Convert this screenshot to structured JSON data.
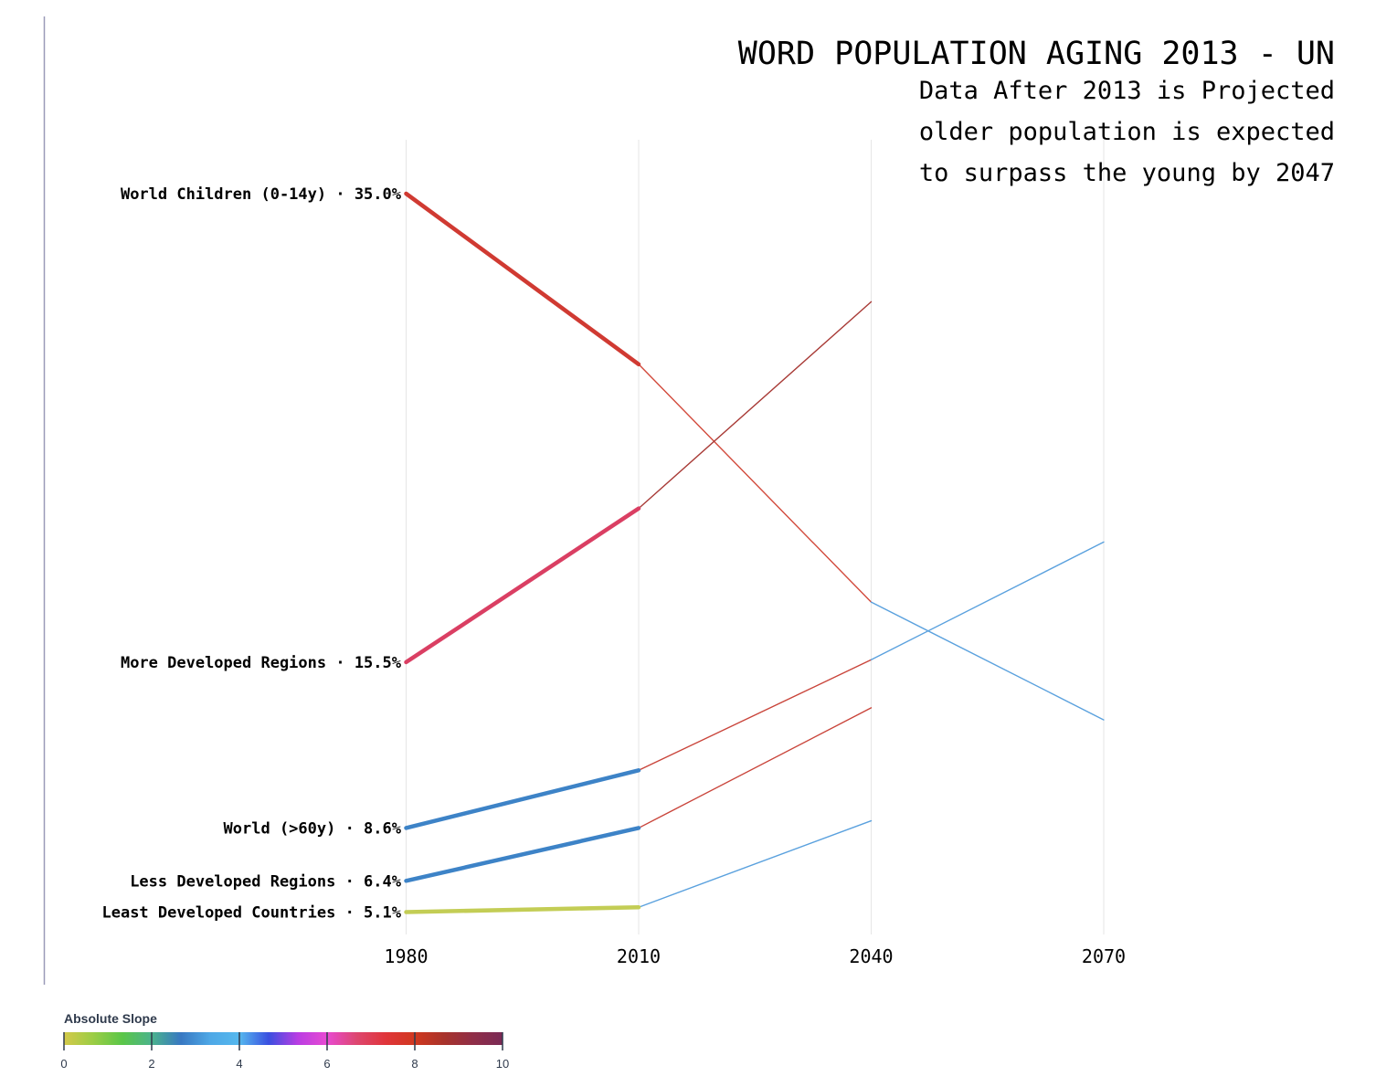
{
  "title": "WORD POPULATION AGING 2013 - UN",
  "subtitle_lines": [
    "Data After 2013 is Projected",
    "older population is expected",
    "to surpass the young by 2047"
  ],
  "chart_data": {
    "type": "line",
    "title": "WORD POPULATION AGING 2013 - UN",
    "x": [
      1980,
      2010,
      2040,
      2070
    ],
    "ylim": [
      3.5,
      37
    ],
    "grid": true,
    "series": [
      {
        "name": "World Children (0-14y)",
        "label": "World Children (0-14y) · 35.0%",
        "values": [
          35.0,
          27.9,
          18.0,
          13.1
        ],
        "segment_colors": [
          "#d03a32",
          "#d24a3c",
          "#5aa1de"
        ]
      },
      {
        "name": "More Developed Regions",
        "label": "More Developed Regions · 15.5%",
        "values": [
          15.5,
          21.9,
          30.5,
          null
        ],
        "segment_colors": [
          "#da3f63",
          "#a83a36",
          null
        ]
      },
      {
        "name": "World (>60y)",
        "label": "World (>60y) · 8.6%",
        "values": [
          8.6,
          11.0,
          15.6,
          20.5
        ],
        "segment_colors": [
          "#3d83c7",
          "#c9443a",
          "#5aa1de"
        ]
      },
      {
        "name": "Less Developed Regions",
        "label": "Less Developed Regions · 6.4%",
        "values": [
          6.4,
          8.6,
          13.6,
          null
        ],
        "segment_colors": [
          "#3d83c7",
          "#c9443a",
          null
        ]
      },
      {
        "name": "Least Developed Countries",
        "label": "Least Developed Countries · 5.1%",
        "values": [
          5.1,
          5.3,
          8.9,
          null
        ],
        "segment_colors": [
          "#c3cd55",
          "#5aa1de",
          null
        ]
      }
    ],
    "projection_start": 2010
  },
  "legend": {
    "title": "Absolute Slope",
    "ticks": [
      "0",
      "2",
      "4",
      "6",
      "8",
      "10"
    ],
    "min": 0,
    "max": 10,
    "gradient_colors": [
      "#d4c94a",
      "#9bcd45",
      "#5ac648",
      "#4bb38c",
      "#3878c2",
      "#4ea8e6",
      "#55b8ee",
      "#3a4fe0",
      "#b93de3",
      "#e84ad2",
      "#dd4770",
      "#e0353a",
      "#d0381f",
      "#a8332b",
      "#8f2e48",
      "#7a2a55"
    ]
  }
}
